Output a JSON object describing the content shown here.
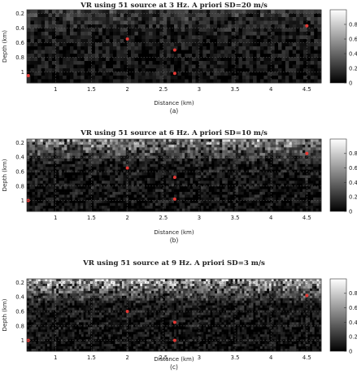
{
  "chart_data": [
    {
      "type": "heatmap",
      "title": "VR using 51 source at 3 Hz. A priori SD=20 m/s",
      "xlabel": "Distance (km)",
      "ylabel": "Depth (km)",
      "caption": "(a)",
      "xlim": [
        0.6,
        4.7
      ],
      "ylim": [
        0.15,
        1.15
      ],
      "xticks": [
        "1",
        "1.5",
        "2",
        "2.5",
        "3",
        "3.5",
        "4",
        "4.5"
      ],
      "xtick_values": [
        1,
        1.5,
        2,
        2.5,
        3,
        3.5,
        4,
        4.5
      ],
      "yticks": [
        "0.2",
        "0.4",
        "0.6",
        "0.8",
        "1"
      ],
      "ytick_values": [
        0.2,
        0.4,
        0.6,
        0.8,
        1.0
      ],
      "colorbar": {
        "ticks": [
          "0",
          "0.2",
          "0.4",
          "0.6",
          "0.8"
        ],
        "tick_values": [
          0,
          0.2,
          0.4,
          0.6,
          0.8
        ],
        "range": [
          0,
          1
        ]
      },
      "grid": true,
      "pixels": {
        "nx": 82,
        "ny": 20,
        "mean": 0.12,
        "noise": 0.28,
        "top_boost": 0.1
      },
      "points": [
        {
          "x": 0.62,
          "y": 1.05
        },
        {
          "x": 2.0,
          "y": 0.55
        },
        {
          "x": 2.66,
          "y": 0.7
        },
        {
          "x": 2.66,
          "y": 1.02
        },
        {
          "x": 4.5,
          "y": 0.37
        }
      ]
    },
    {
      "type": "heatmap",
      "title": "VR using 51 source at 6 Hz. A priori SD=10 m/s",
      "xlabel": "Distance (km)",
      "ylabel": "Depth (km)",
      "caption": "(b)",
      "xlim": [
        0.6,
        4.7
      ],
      "ylim": [
        0.15,
        1.15
      ],
      "xticks": [
        "1",
        "1.5",
        "2",
        "2.5",
        "3",
        "3.5",
        "4",
        "4.5"
      ],
      "xtick_values": [
        1,
        1.5,
        2,
        2.5,
        3,
        3.5,
        4,
        4.5
      ],
      "yticks": [
        "0.2",
        "0.4",
        "0.6",
        "0.8",
        "1"
      ],
      "ytick_values": [
        0.2,
        0.4,
        0.6,
        0.8,
        1.0
      ],
      "colorbar": {
        "ticks": [
          "0",
          "0.2",
          "0.4",
          "0.6",
          "0.8"
        ],
        "tick_values": [
          0,
          0.2,
          0.4,
          0.6,
          0.8
        ],
        "range": [
          0,
          1
        ]
      },
      "grid": true,
      "pixels": {
        "nx": 110,
        "ny": 26,
        "mean": 0.1,
        "noise": 0.3,
        "top_boost": 0.45
      },
      "points": [
        {
          "x": 0.62,
          "y": 1.0
        },
        {
          "x": 2.0,
          "y": 0.55
        },
        {
          "x": 2.66,
          "y": 0.68
        },
        {
          "x": 2.66,
          "y": 0.98
        },
        {
          "x": 4.5,
          "y": 0.35
        }
      ]
    },
    {
      "type": "heatmap",
      "title": "VR using 51 source at 9 Hz. A priori SD=3 m/s",
      "xlabel": "Distance (km)",
      "ylabel": "Depth (km)",
      "caption": "(c)",
      "xlim": [
        0.6,
        4.7
      ],
      "ylim": [
        0.15,
        1.15
      ],
      "xticks": [
        "1",
        "1.5",
        "2",
        "2.5",
        "3",
        "3.5",
        "4",
        "4.5"
      ],
      "xtick_values": [
        1,
        1.5,
        2,
        2.5,
        3,
        3.5,
        4,
        4.5
      ],
      "yticks": [
        "0.2",
        "0.4",
        "0.6",
        "0.8",
        "1"
      ],
      "ytick_values": [
        0.2,
        0.4,
        0.6,
        0.8,
        1.0
      ],
      "colorbar": {
        "ticks": [
          "0",
          "0.2",
          "0.4",
          "0.6",
          "0.8"
        ],
        "tick_values": [
          0,
          0.2,
          0.4,
          0.6,
          0.8
        ],
        "range": [
          0,
          1
        ]
      },
      "grid": true,
      "pixels": {
        "nx": 130,
        "ny": 30,
        "mean": 0.1,
        "noise": 0.3,
        "top_boost": 0.6
      },
      "points": [
        {
          "x": 0.62,
          "y": 1.0
        },
        {
          "x": 2.0,
          "y": 0.6
        },
        {
          "x": 2.66,
          "y": 0.75
        },
        {
          "x": 2.66,
          "y": 1.0
        },
        {
          "x": 4.5,
          "y": 0.38
        }
      ]
    }
  ],
  "colors": {
    "point": "#e53935",
    "grid": "#6e6e6e",
    "axis": "#333333"
  }
}
